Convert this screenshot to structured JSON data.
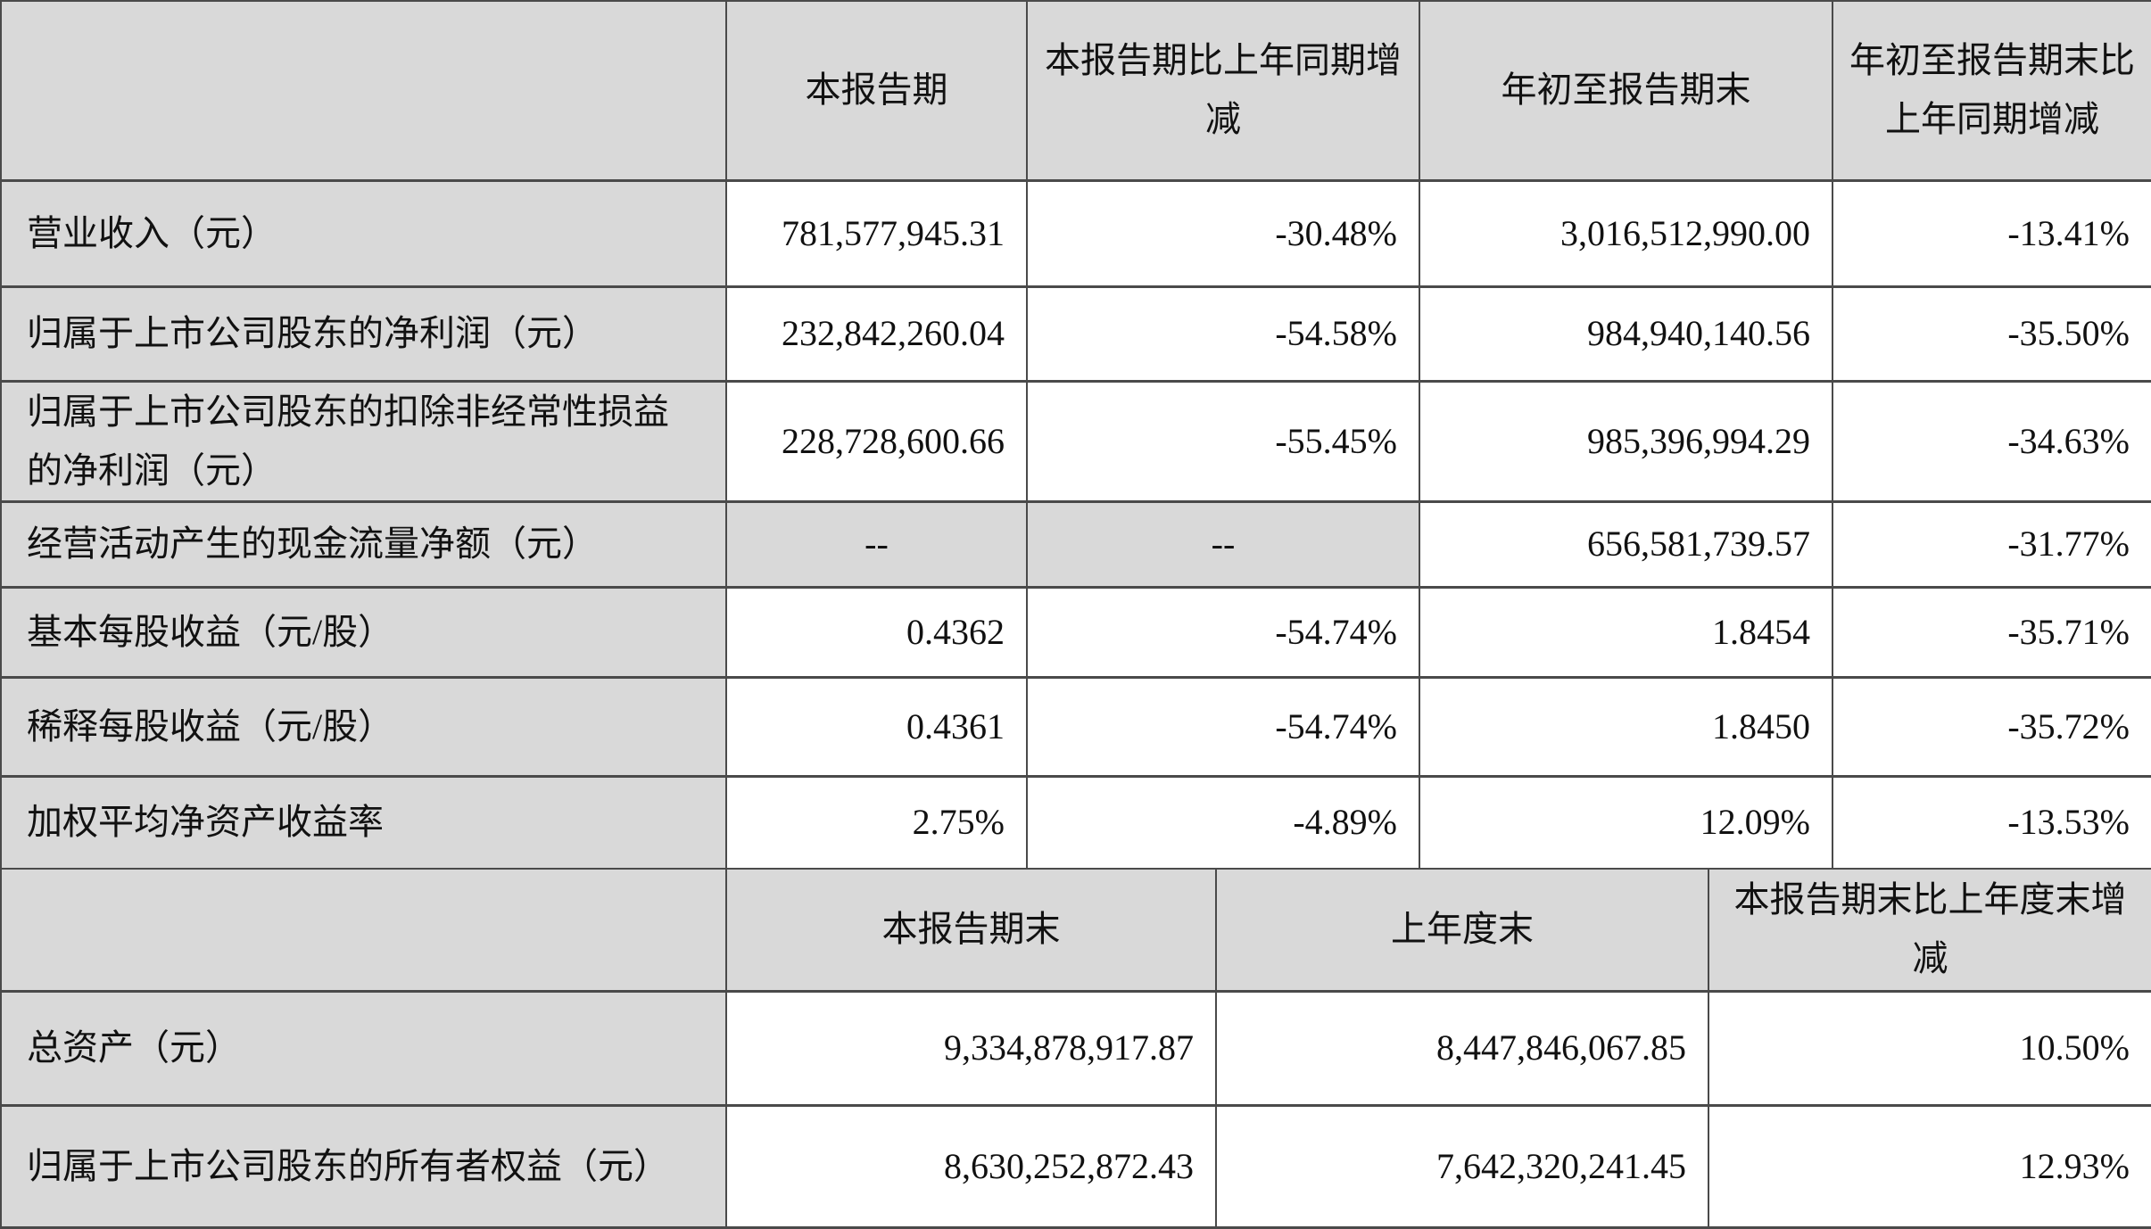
{
  "table1": {
    "headers": [
      "",
      "本报告期",
      "本报告期比上年同期增减",
      "年初至报告期末",
      "年初至报告期末比上年同期增减"
    ],
    "rows": [
      {
        "label": "营业收入（元）",
        "values": [
          "781,577,945.31",
          "-30.48%",
          "3,016,512,990.00",
          "-13.41%"
        ]
      },
      {
        "label": "归属于上市公司股东的净利润（元）",
        "values": [
          "232,842,260.04",
          "-54.58%",
          "984,940,140.56",
          "-35.50%"
        ]
      },
      {
        "label": "归属于上市公司股东的扣除非经常性损益的净利润（元）",
        "values": [
          "228,728,600.66",
          "-55.45%",
          "985,396,994.29",
          "-34.63%"
        ]
      },
      {
        "label": "经营活动产生的现金流量净额（元）",
        "values": [
          "--",
          "--",
          "656,581,739.57",
          "-31.77%"
        ]
      },
      {
        "label": "基本每股收益（元/股）",
        "values": [
          "0.4362",
          "-54.74%",
          "1.8454",
          "-35.71%"
        ]
      },
      {
        "label": "稀释每股收益（元/股）",
        "values": [
          "0.4361",
          "-54.74%",
          "1.8450",
          "-35.72%"
        ]
      },
      {
        "label": "加权平均净资产收益率",
        "values": [
          "2.75%",
          "-4.89%",
          "12.09%",
          "-13.53%"
        ]
      }
    ]
  },
  "table2": {
    "headers": [
      "",
      "本报告期末",
      "上年度末",
      "本报告期末比上年度末增减"
    ],
    "rows": [
      {
        "label": "总资产（元）",
        "values": [
          "9,334,878,917.87",
          "8,447,846,067.85",
          "10.50%"
        ]
      },
      {
        "label": "归属于上市公司股东的所有者权益（元）",
        "values": [
          "8,630,252,872.43",
          "7,642,320,241.45",
          "12.93%"
        ]
      }
    ]
  },
  "colors": {
    "header_bg": "#d9d9d9",
    "border": "#4a4a4a"
  }
}
